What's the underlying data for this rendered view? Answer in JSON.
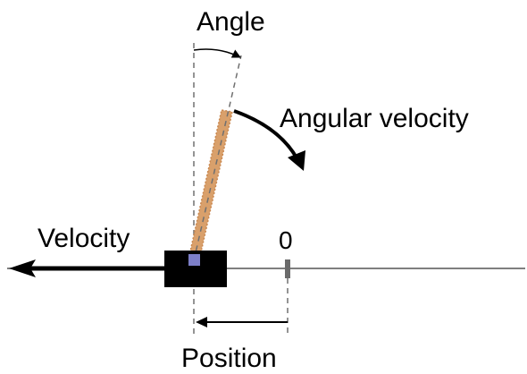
{
  "labels": {
    "angle": "Angle",
    "angular_velocity": "Angular velocity",
    "velocity": "Velocity",
    "zero": "0",
    "position": "Position"
  },
  "colors": {
    "pole": "#d9a06b",
    "pole_edge": "#c9874f",
    "cart": "#000000",
    "axle": "#7d7fc8",
    "track": "#555555",
    "marker": "#6b6b6b",
    "guide": "#707070",
    "text": "#000000"
  },
  "icons": {
    "velocity_arrow": "arrow-left-icon",
    "angular_velocity_arrow": "curved-arrow-clockwise-icon",
    "position_arrow": "arrow-left-icon"
  }
}
